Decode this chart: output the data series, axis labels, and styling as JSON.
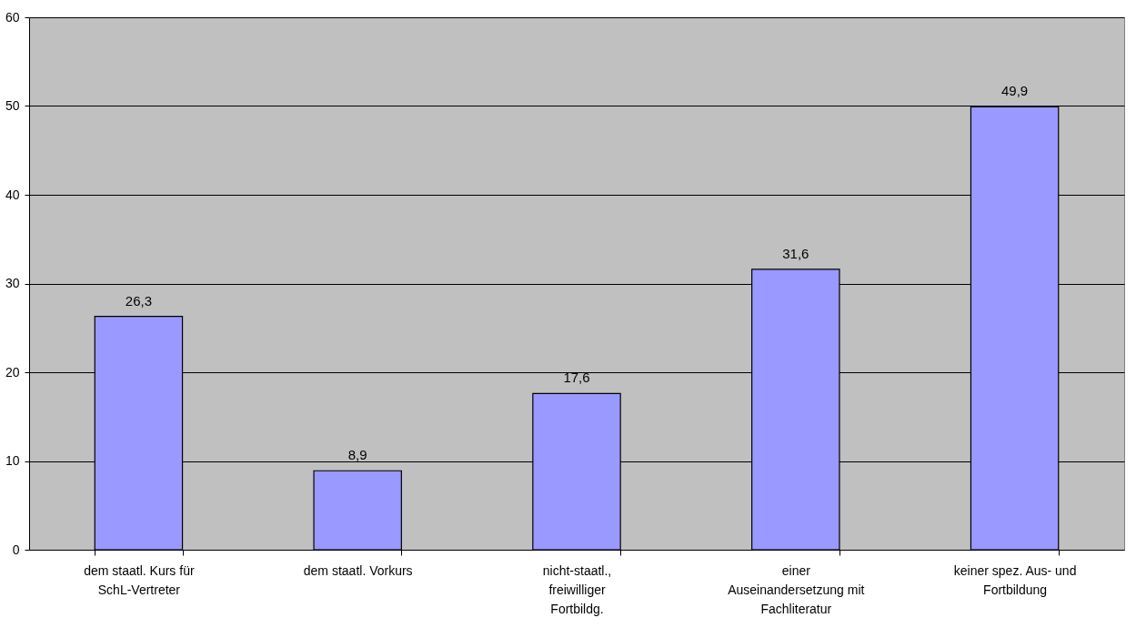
{
  "chart_data": {
    "type": "bar",
    "categories": [
      "dem staatl. Kurs für SchL-Vertreter",
      "dem staatl. Vorkurs",
      "nicht-staatl., freiwilliger Fortbildg.",
      "einer Auseinandersetzung mit Fachliteratur",
      "keiner spez. Aus- und Fortbildung"
    ],
    "values": [
      26.3,
      8.9,
      17.6,
      31.6,
      49.9
    ],
    "value_labels": [
      "26,3",
      "8,9",
      "17,6",
      "31,6",
      "49,9"
    ],
    "color": "#9999ff",
    "ylim": [
      0,
      60
    ],
    "yticks": [
      0,
      10,
      20,
      30,
      40,
      50,
      60
    ],
    "grid": "y"
  }
}
